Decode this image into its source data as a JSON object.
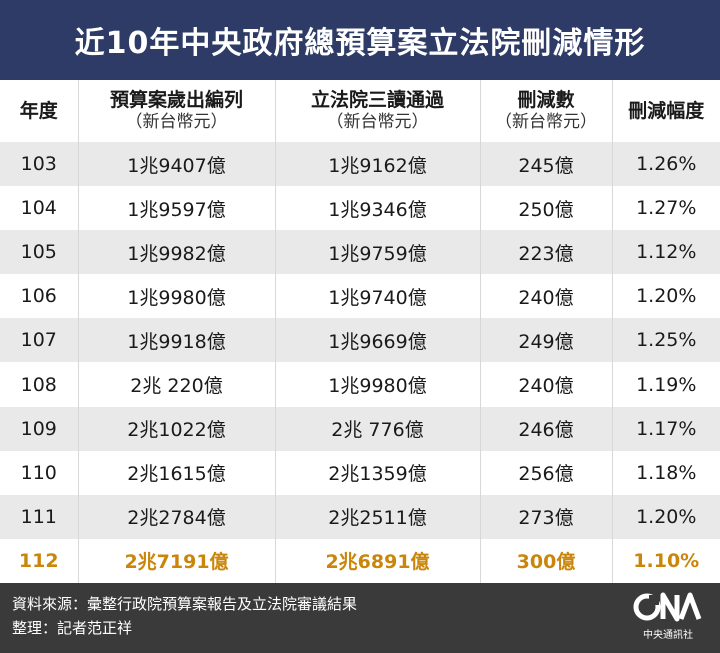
{
  "title": "近10年中央政府總預算案立法院刪減情形",
  "headers": [
    {
      "main": "年度",
      "sub": ""
    },
    {
      "main": "預算案歲出編列",
      "sub": "（新台幣元）"
    },
    {
      "main": "立法院三讀通過",
      "sub": "（新台幣元）"
    },
    {
      "main": "刪減數",
      "sub": "（新台幣元）"
    },
    {
      "main": "刪減幅度",
      "sub": ""
    }
  ],
  "rows": [
    [
      "103",
      "1兆9407億",
      "1兆9162億",
      "245億",
      "1.26%"
    ],
    [
      "104",
      "1兆9597億",
      "1兆9346億",
      "250億",
      "1.27%"
    ],
    [
      "105",
      "1兆9982億",
      "1兆9759億",
      "223億",
      "1.12%"
    ],
    [
      "106",
      "1兆9980億",
      "1兆9740億",
      "240億",
      "1.20%"
    ],
    [
      "107",
      "1兆9918億",
      "1兆9669億",
      "249億",
      "1.25%"
    ],
    [
      "108",
      "2兆 220億",
      "1兆9980億",
      "240億",
      "1.19%"
    ],
    [
      "109",
      "2兆1022億",
      "2兆 776億",
      "246億",
      "1.17%"
    ],
    [
      "110",
      "2兆1615億",
      "2兆1359億",
      "256億",
      "1.18%"
    ],
    [
      "111",
      "2兆2784億",
      "2兆2511億",
      "273億",
      "1.20%"
    ],
    [
      "112",
      "2兆7191億",
      "2兆6891億",
      "300億",
      "1.10%"
    ]
  ],
  "highlight_color": "#c9860a",
  "header_bg": "#2d3b66",
  "footer": {
    "source": "資料來源：彙整行政院預算案報告及立法院審議結果",
    "editor": "整理：記者范正祥",
    "logo_text": "中央通訊社"
  }
}
